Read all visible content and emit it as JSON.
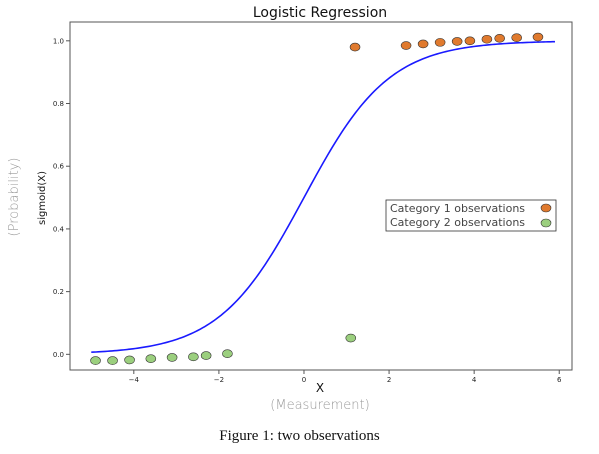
{
  "chart_data": {
    "type": "scatter",
    "title": "Logistic Regression",
    "xlabel": "X",
    "xlabel_annotation": "(Measurement)",
    "ylabel": "sigmoid(X)",
    "ylabel_annotation": "(Probability)",
    "xlim": [
      -5.5,
      6.3
    ],
    "ylim": [
      -0.05,
      1.06
    ],
    "xticks": [
      -4,
      -2,
      0,
      2,
      4,
      6
    ],
    "xtick_labels": [
      "−4",
      "−2",
      "0",
      "2",
      "4",
      "6"
    ],
    "yticks": [
      0.0,
      0.2,
      0.4,
      0.6,
      0.8,
      1.0
    ],
    "ytick_labels": [
      "0.0",
      "0.2",
      "0.4",
      "0.6",
      "0.8",
      "1.0"
    ],
    "grid": false,
    "legend_position": "center-right",
    "curve": {
      "type": "sigmoid",
      "x_range": [
        -5.0,
        5.9
      ],
      "color": "#1a1aff"
    },
    "series": [
      {
        "name": "Category 1 observations",
        "color": "#e07a2e",
        "points": [
          {
            "x": 1.2,
            "y": 0.98
          },
          {
            "x": 2.4,
            "y": 0.985
          },
          {
            "x": 2.8,
            "y": 0.99
          },
          {
            "x": 3.2,
            "y": 0.995
          },
          {
            "x": 3.6,
            "y": 0.998
          },
          {
            "x": 3.9,
            "y": 1.0
          },
          {
            "x": 4.3,
            "y": 1.005
          },
          {
            "x": 4.6,
            "y": 1.008
          },
          {
            "x": 5.0,
            "y": 1.01
          },
          {
            "x": 5.5,
            "y": 1.012
          }
        ]
      },
      {
        "name": "Category 2 observations",
        "color": "#9bcf7e",
        "points": [
          {
            "x": -4.9,
            "y": -0.02
          },
          {
            "x": -4.5,
            "y": -0.02
          },
          {
            "x": -4.1,
            "y": -0.018
          },
          {
            "x": -3.6,
            "y": -0.014
          },
          {
            "x": -3.1,
            "y": -0.01
          },
          {
            "x": -2.6,
            "y": -0.008
          },
          {
            "x": -2.3,
            "y": -0.004
          },
          {
            "x": -1.8,
            "y": 0.002
          },
          {
            "x": 1.1,
            "y": 0.052
          }
        ]
      }
    ]
  },
  "caption": "Figure 1: two observations"
}
